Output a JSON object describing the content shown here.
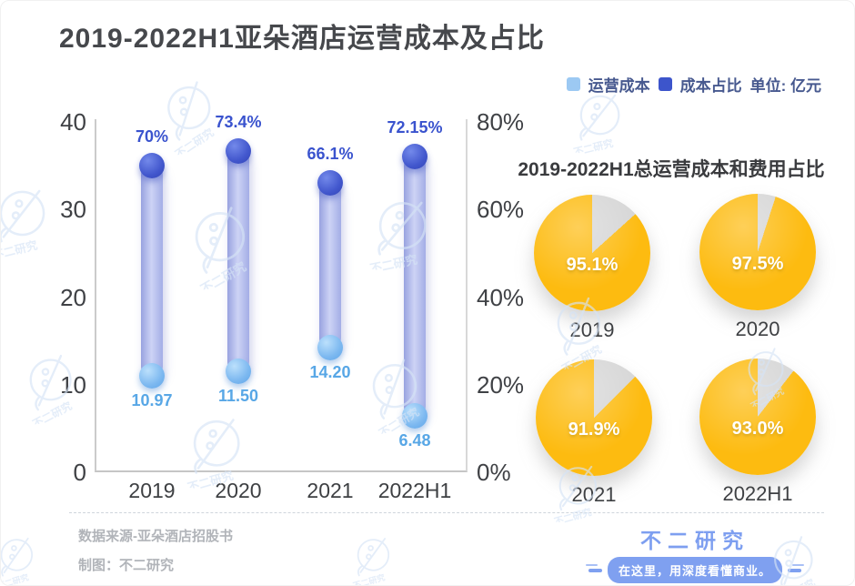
{
  "page": {
    "title": "2019-2022H1亚朵酒店运营成本及占比"
  },
  "legend": {
    "items": [
      {
        "label": "运营成本",
        "color": "#9cc9f3"
      },
      {
        "label": "成本占比",
        "color": "#3d55cb"
      }
    ],
    "unit": "单位: 亿元"
  },
  "chart_data": [
    {
      "type": "bar",
      "subtype": "dumbbell-lollipop",
      "title": "2019-2022H1亚朵酒店运营成本及占比",
      "categories": [
        "2019",
        "2020",
        "2021",
        "2022H1"
      ],
      "series": [
        {
          "name": "运营成本",
          "axis": "left",
          "unit": "亿元",
          "values": [
            10.97,
            11.5,
            14.2,
            6.48
          ],
          "labels": [
            "10.97",
            "11.50",
            "14.20",
            "6.48"
          ],
          "color": "#7db9ef"
        },
        {
          "name": "成本占比",
          "axis": "right",
          "unit": "%",
          "values": [
            70,
            73.4,
            66.1,
            72.15
          ],
          "labels": [
            "70%",
            "73.4%",
            "66.1%",
            "72.15%"
          ],
          "color": "#4156cc"
        }
      ],
      "left_axis": {
        "min": 0,
        "max": 40,
        "ticks": [
          40,
          30,
          20,
          10,
          0
        ]
      },
      "right_axis": {
        "min": 0,
        "max": 80,
        "ticks": [
          "80%",
          "60%",
          "40%",
          "20%",
          "0%"
        ]
      },
      "grid": false,
      "legend_position": "top-right"
    },
    {
      "type": "pie",
      "title": "2019-2022H1总运营成本和费用占比",
      "pies": [
        {
          "label": "2019",
          "value": 95.1,
          "display": "95.1%",
          "remainder": 4.9,
          "visual_gray_sweep_deg": 48
        },
        {
          "label": "2020",
          "value": 97.5,
          "display": "97.5%",
          "remainder": 2.5,
          "visual_gray_sweep_deg": 18
        },
        {
          "label": "2021",
          "value": 91.9,
          "display": "91.9%",
          "remainder": 8.1,
          "visual_gray_sweep_deg": 45
        },
        {
          "label": "2022H1",
          "value": 93.0,
          "display": "93.0%",
          "remainder": 7.0,
          "visual_gray_sweep_deg": 38
        }
      ],
      "colors": {
        "main": "#fdbb10",
        "remainder": "#d6d6d6"
      }
    }
  ],
  "footer": {
    "source": "数据来源-亚朵酒店招股书",
    "credit": "制图：不二研究",
    "brand": "不二研究",
    "tagline": "在这里，用深度看懂商业。"
  },
  "watermark": {
    "text": "不二研究",
    "color": "#d6e4f6"
  },
  "colors": {
    "title_text": "#46484c",
    "axis_text": "#3f4145",
    "pct_label": "#3a53ce",
    "val_label": "#58a7e6",
    "bar_fill": "#b4bdf0",
    "pie_main": "#fdbb10",
    "pie_remainder": "#d6d6d6",
    "brand_blue": "#7e9ff0",
    "footer_gray": "#b1b4b9"
  }
}
